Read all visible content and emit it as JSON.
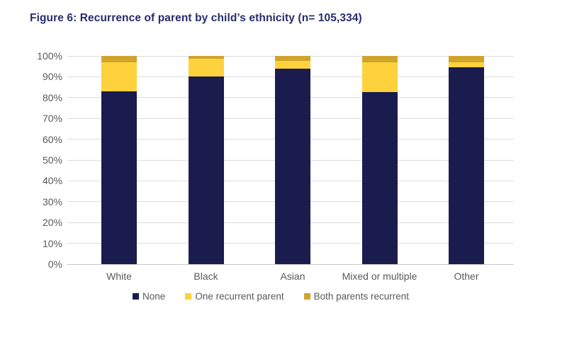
{
  "figure": {
    "title": "Figure 6: Recurrence of parent by child’s ethnicity (n= 105,334)"
  },
  "colors": {
    "title_text": "#272c6d",
    "axis_text": "#5a5a5a",
    "gridline": "#dcdcdc",
    "axis_line": "#c9c9c9",
    "none": "#1b1c4e",
    "one_recurrent": "#fed23c",
    "both_recurrent": "#d0a42b"
  },
  "chart_data": {
    "type": "bar",
    "stacked": true,
    "units": "percent",
    "title": "Figure 6: Recurrence of parent by child’s ethnicity (n= 105,334)",
    "categories": [
      "White",
      "Black",
      "Asian",
      "Mixed or multiple",
      "Other"
    ],
    "series": [
      {
        "name": "None",
        "color_key": "none",
        "values": [
          83,
          90,
          94,
          82.5,
          94.5
        ]
      },
      {
        "name": "One recurrent parent",
        "color_key": "one_recurrent",
        "values": [
          14,
          8.5,
          3.5,
          14.5,
          2.5
        ]
      },
      {
        "name": "Both parents recurrent",
        "color_key": "both_recurrent",
        "values": [
          3,
          1.5,
          2.5,
          3,
          3
        ]
      }
    ],
    "xlabel": "",
    "ylabel": "",
    "ylim": [
      0,
      100
    ],
    "ytick_step": 10,
    "ytick_labels": [
      "0%",
      "10%",
      "20%",
      "30%",
      "40%",
      "50%",
      "60%",
      "70%",
      "80%",
      "90%",
      "100%"
    ],
    "grid": true,
    "legend_position": "bottom"
  }
}
